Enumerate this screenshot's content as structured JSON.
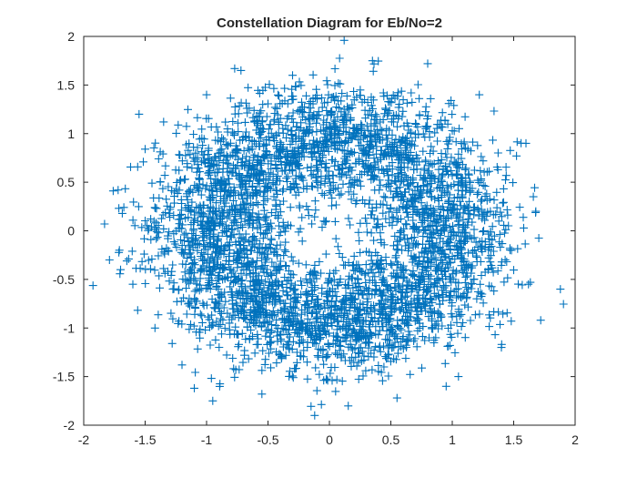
{
  "chart_data": {
    "type": "scatter",
    "title": "Constellation Diagram for Eb/No=2",
    "xlabel": "",
    "ylabel": "",
    "xlim": [
      -2,
      2
    ],
    "ylim": [
      -2,
      2
    ],
    "x_ticks": [
      -2,
      -1.5,
      -1,
      -0.5,
      0,
      0.5,
      1,
      1.5,
      2
    ],
    "y_ticks": [
      -2,
      -1.5,
      -1,
      -0.5,
      0,
      0.5,
      1,
      1.5,
      2
    ],
    "x_tick_labels": [
      "-2",
      "-1.5",
      "-1",
      "-0.5",
      "0",
      "0.5",
      "1",
      "1.5",
      "2"
    ],
    "y_tick_labels": [
      "-2",
      "-1.5",
      "-1",
      "-0.5",
      "0",
      "0.5",
      "1",
      "1.5",
      "2"
    ],
    "marker": "plus",
    "series_color": "#0072BD",
    "grid": false,
    "legend": "none",
    "distribution": {
      "shape": "noisy ring",
      "center": [
        0,
        0
      ],
      "ring_radius": 0.95,
      "noise_sigma": 0.3,
      "point_count": 4000
    },
    "series": [
      {
        "values": [
          [
            -1.83,
            0.07
          ],
          [
            -1.79,
            -0.3
          ],
          [
            -1.76,
            0.41
          ],
          [
            -1.72,
            0.42
          ],
          [
            -1.7,
            -0.4
          ],
          [
            -1.6,
            -0.55
          ],
          [
            -1.55,
            1.2
          ],
          [
            -1.5,
            0.84
          ],
          [
            -1.42,
            -1.0
          ],
          [
            -1.35,
            1.12
          ],
          [
            -1.28,
            -1.16
          ],
          [
            -1.2,
            -1.38
          ],
          [
            -1.1,
            -1.62
          ],
          [
            -0.95,
            -1.75
          ],
          [
            -0.72,
            1.65
          ],
          [
            -0.55,
            -1.68
          ],
          [
            -0.3,
            1.6
          ],
          [
            -0.12,
            -1.9
          ],
          [
            0.12,
            1.96
          ],
          [
            0.35,
            1.75
          ],
          [
            0.55,
            -1.72
          ],
          [
            0.8,
            1.72
          ],
          [
            0.95,
            -1.6
          ],
          [
            1.22,
            1.4
          ],
          [
            1.4,
            -1.2
          ],
          [
            1.6,
            0.9
          ],
          [
            1.62,
            -0.55
          ],
          [
            1.68,
            0.2
          ],
          [
            1.72,
            -0.92
          ],
          [
            1.88,
            -0.6
          ],
          [
            1.66,
            0.35
          ],
          [
            -1.0,
            1.4
          ],
          [
            1.05,
            -1.5
          ],
          [
            0.0,
            1.05
          ],
          [
            0.9,
            0.45
          ]
        ]
      }
    ]
  }
}
